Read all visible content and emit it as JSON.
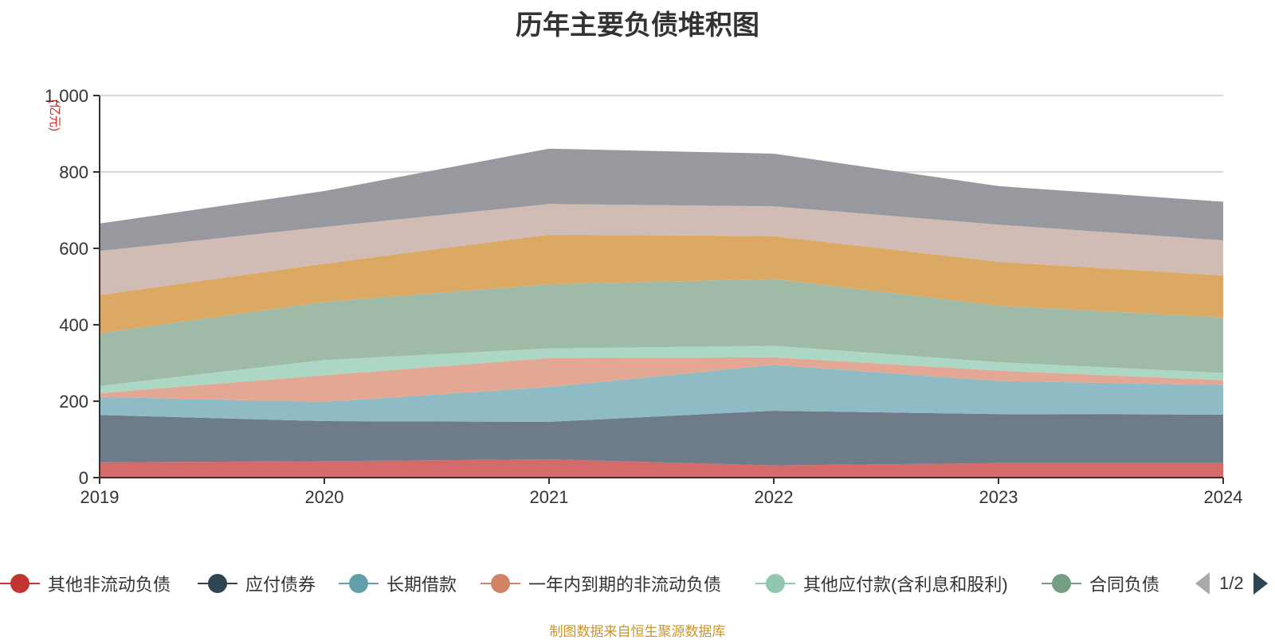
{
  "chart_data": {
    "type": "area",
    "title": "历年主要负债堆积图",
    "ylabel": "(亿元)",
    "x": [
      "2019",
      "2020",
      "2021",
      "2022",
      "2023",
      "2024"
    ],
    "ylim": [
      0,
      1000
    ],
    "yticks": [
      0,
      200,
      400,
      600,
      800,
      1000
    ],
    "ytick_labels": [
      "0",
      "200",
      "400",
      "600",
      "800",
      "1,000"
    ],
    "stacked": true,
    "grid": true,
    "series": [
      {
        "name": "其他非流动负债",
        "color": "#d46a6a",
        "values": [
          40,
          43,
          48,
          32,
          38,
          38
        ]
      },
      {
        "name": "应付债券",
        "color": "#6e7b88",
        "values": [
          124,
          105,
          98,
          143,
          128,
          127
        ]
      },
      {
        "name": "长期借款",
        "color": "#8fbcc4",
        "values": [
          47,
          50,
          91,
          120,
          87,
          77
        ]
      },
      {
        "name": "一年内到期的非流动负债",
        "color": "#e3a894",
        "values": [
          10,
          70,
          76,
          20,
          27,
          13
        ]
      },
      {
        "name": "其他应付款(含利息和股利)",
        "color": "#acd7c4",
        "values": [
          19,
          40,
          25,
          30,
          22,
          19
        ]
      },
      {
        "name": "合同负债",
        "color": "#9fbba7",
        "values": [
          138,
          152,
          168,
          175,
          148,
          145
        ]
      },
      {
        "name": "",
        "color": "#dba964",
        "values": [
          100,
          100,
          130,
          112,
          115,
          110
        ]
      },
      {
        "name": "",
        "color": "#d1bcb5",
        "values": [
          115,
          96,
          80,
          78,
          97,
          92
        ]
      },
      {
        "name": "",
        "color": "#98999e",
        "values": [
          72,
          94,
          145,
          138,
          101,
          101
        ]
      }
    ]
  },
  "legend": {
    "page_indicator": "1/2",
    "items": [
      {
        "label": "其他非流动负债",
        "color": "#c23531"
      },
      {
        "label": "应付债券",
        "color": "#2f4554"
      },
      {
        "label": "长期借款",
        "color": "#61a0a8"
      },
      {
        "label": "一年内到期的非流动负债",
        "color": "#d48265"
      },
      {
        "label": "其他应付款(含利息和股利)",
        "color": "#91c7ae"
      },
      {
        "label": "合同负债",
        "color": "#749f83"
      }
    ]
  },
  "source": "制图数据来自恒生聚源数据库"
}
